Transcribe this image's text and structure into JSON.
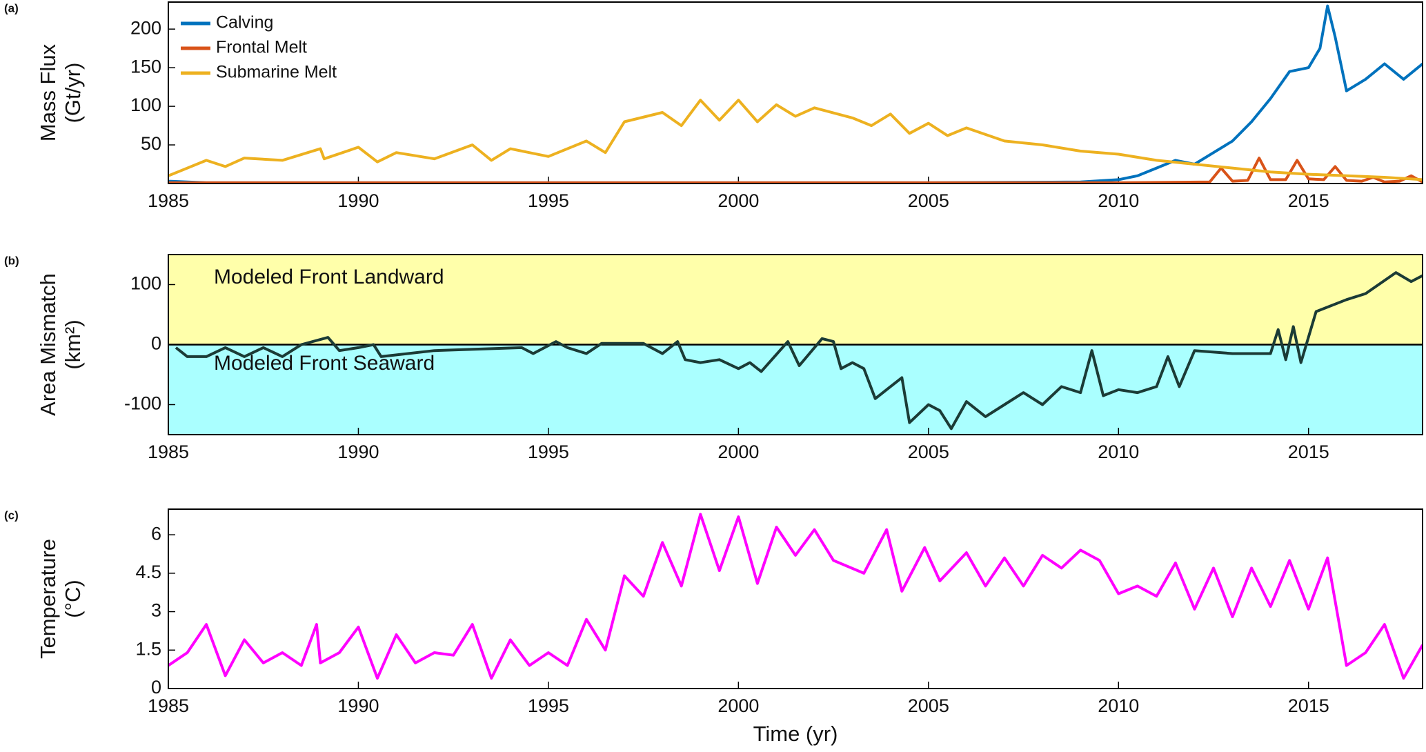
{
  "chart_data": [
    {
      "type": "line",
      "panel_label": "(a)",
      "ylabel": [
        "Mass Flux",
        "(Gt/yr)"
      ],
      "xlim": [
        1985,
        2018
      ],
      "xticks": [
        1985,
        1990,
        1995,
        2000,
        2005,
        2010,
        2015
      ],
      "ylim": [
        0,
        235
      ],
      "yticks": [
        50,
        100,
        150,
        200
      ],
      "legend": "upper left",
      "series": [
        {
          "name": "Calving",
          "color": "#0072bd",
          "x": [
            1985,
            1986,
            1990,
            1995,
            2000,
            2005,
            2009,
            2010,
            2010.5,
            2011,
            2011.5,
            2012,
            2012.5,
            2013,
            2013.5,
            2014,
            2014.5,
            2015,
            2015.3,
            2015.5,
            2015.7,
            2016,
            2016.5,
            2017,
            2017.5,
            2018
          ],
          "values": [
            3,
            1,
            1,
            1,
            1,
            1,
            2,
            5,
            10,
            20,
            30,
            25,
            40,
            55,
            80,
            110,
            145,
            150,
            175,
            230,
            190,
            120,
            135,
            155,
            135,
            155
          ]
        },
        {
          "name": "Frontal Melt",
          "color": "#d95319",
          "x": [
            1985,
            1990,
            2000,
            2010,
            2012.4,
            2012.7,
            2013,
            2013.4,
            2013.7,
            2014,
            2014.4,
            2014.7,
            2015,
            2015.4,
            2015.7,
            2016,
            2016.4,
            2016.7,
            2017,
            2017.4,
            2017.7,
            2018
          ],
          "values": [
            1,
            1,
            1,
            1,
            2,
            20,
            3,
            4,
            33,
            5,
            5,
            30,
            6,
            5,
            22,
            4,
            3,
            8,
            2,
            3,
            10,
            2
          ]
        },
        {
          "name": "Submarine Melt",
          "color": "#edb120",
          "x": [
            1985,
            1986,
            1986.5,
            1987,
            1988,
            1989,
            1989.1,
            1990,
            1990.5,
            1991,
            1992,
            1993,
            1993.5,
            1994,
            1995,
            1996,
            1996.5,
            1997,
            1998,
            1998.5,
            1999,
            1999.5,
            2000,
            2000.5,
            2001,
            2001.5,
            2002,
            2003,
            2003.5,
            2004,
            2004.5,
            2005,
            2005.5,
            2006,
            2007,
            2008,
            2009,
            2010,
            2011,
            2012,
            2013,
            2014,
            2015,
            2016,
            2017,
            2018
          ],
          "values": [
            10,
            30,
            22,
            33,
            30,
            45,
            32,
            47,
            28,
            40,
            32,
            50,
            30,
            45,
            35,
            55,
            40,
            80,
            92,
            75,
            108,
            82,
            108,
            80,
            102,
            87,
            98,
            85,
            75,
            90,
            65,
            78,
            62,
            72,
            55,
            50,
            42,
            38,
            30,
            25,
            20,
            15,
            12,
            10,
            8,
            5
          ]
        }
      ]
    },
    {
      "type": "line",
      "panel_label": "(b)",
      "ylabel": [
        "Area Mismatch",
        "(km²)"
      ],
      "xlim": [
        1985,
        2018
      ],
      "xticks": [
        1985,
        1990,
        1995,
        2000,
        2005,
        2010,
        2015
      ],
      "ylim": [
        -150,
        150
      ],
      "yticks": [
        -100,
        0,
        100
      ],
      "reference_line": 0,
      "regions": [
        {
          "label": "Modeled Front Landward",
          "color": "#ffffaa",
          "from": 0,
          "to": 150
        },
        {
          "label": "Modeled Front Seaward",
          "color": "#aaffff",
          "from": -150,
          "to": 0
        }
      ],
      "series": [
        {
          "color": "#1b3b36",
          "x": [
            1985.2,
            1985.5,
            1986,
            1986.5,
            1987,
            1987.5,
            1988,
            1988.5,
            1989.2,
            1989.5,
            1990,
            1990.4,
            1990.6,
            1992,
            1994.3,
            1994.6,
            1995.2,
            1995.5,
            1996,
            1996.4,
            1997.5,
            1998,
            1998.4,
            1998.6,
            1999,
            1999.5,
            2000,
            2000.3,
            2000.6,
            2001.3,
            2001.6,
            2002.2,
            2002.5,
            2002.7,
            2003,
            2003.3,
            2003.6,
            2004,
            2004.3,
            2004.5,
            2005,
            2005.3,
            2005.6,
            2006,
            2006.5,
            2007,
            2007.5,
            2008,
            2008.5,
            2009,
            2009.3,
            2009.6,
            2010,
            2010.5,
            2011,
            2011.3,
            2011.6,
            2012,
            2013,
            2014,
            2014.2,
            2014.4,
            2014.6,
            2014.8,
            2015.2,
            2016,
            2016.5,
            2017.3,
            2017.7,
            2018
          ],
          "values": [
            -5,
            -20,
            -20,
            -5,
            -20,
            -5,
            -20,
            0,
            12,
            -10,
            -5,
            0,
            -20,
            -10,
            -5,
            -15,
            5,
            -5,
            -15,
            2,
            2,
            -15,
            5,
            -25,
            -30,
            -25,
            -40,
            -30,
            -45,
            5,
            -35,
            10,
            5,
            -40,
            -30,
            -40,
            -90,
            -70,
            -55,
            -130,
            -100,
            -110,
            -140,
            -95,
            -120,
            -100,
            -80,
            -100,
            -70,
            -80,
            -10,
            -85,
            -75,
            -80,
            -70,
            -20,
            -70,
            -10,
            -15,
            -15,
            25,
            -25,
            30,
            -30,
            55,
            75,
            85,
            120,
            105,
            115
          ]
        }
      ]
    },
    {
      "type": "line",
      "panel_label": "(c)",
      "ylabel": [
        "Temperature",
        "(°C)"
      ],
      "xlabel": "Time (yr)",
      "xlim": [
        1985,
        2018
      ],
      "xticks": [
        1985,
        1990,
        1995,
        2000,
        2005,
        2010,
        2015
      ],
      "ylim": [
        0,
        7
      ],
      "yticks": [
        0,
        1.5,
        3,
        4.5,
        6
      ],
      "series": [
        {
          "color": "#ff00ff",
          "x": [
            1985,
            1985.5,
            1986,
            1986.5,
            1987,
            1987.5,
            1988,
            1988.5,
            1988.9,
            1989,
            1989.5,
            1990,
            1990.5,
            1991,
            1991.5,
            1992,
            1992.5,
            1993,
            1993.5,
            1994,
            1994.5,
            1995,
            1995.5,
            1996,
            1996.5,
            1997,
            1997.5,
            1998,
            1998.5,
            1999,
            1999.5,
            2000,
            2000.5,
            2001,
            2001.5,
            2002,
            2002.5,
            2003.3,
            2003.9,
            2004.3,
            2004.9,
            2005.3,
            2006,
            2006.5,
            2007,
            2007.5,
            2008,
            2008.5,
            2009,
            2009.5,
            2010,
            2010.5,
            2011,
            2011.5,
            2012,
            2012.5,
            2013,
            2013.5,
            2014,
            2014.5,
            2015,
            2015.5,
            2016,
            2016.5,
            2017,
            2017.5,
            2018
          ],
          "values": [
            0.9,
            1.4,
            2.5,
            0.5,
            1.9,
            1.0,
            1.4,
            0.9,
            2.5,
            1.0,
            1.4,
            2.4,
            0.4,
            2.1,
            1.0,
            1.4,
            1.3,
            2.5,
            0.4,
            1.9,
            0.9,
            1.4,
            0.9,
            2.7,
            1.5,
            4.4,
            3.6,
            5.7,
            4.0,
            6.8,
            4.6,
            6.7,
            4.1,
            6.3,
            5.2,
            6.2,
            5.0,
            4.5,
            6.2,
            3.8,
            5.5,
            4.2,
            5.3,
            4.0,
            5.1,
            4.0,
            5.2,
            4.7,
            5.4,
            5.0,
            3.7,
            4.0,
            3.6,
            4.9,
            3.1,
            4.7,
            2.8,
            4.7,
            3.2,
            5.0,
            3.1,
            5.1,
            0.9,
            1.4,
            2.5,
            0.4,
            1.7
          ]
        }
      ]
    }
  ]
}
